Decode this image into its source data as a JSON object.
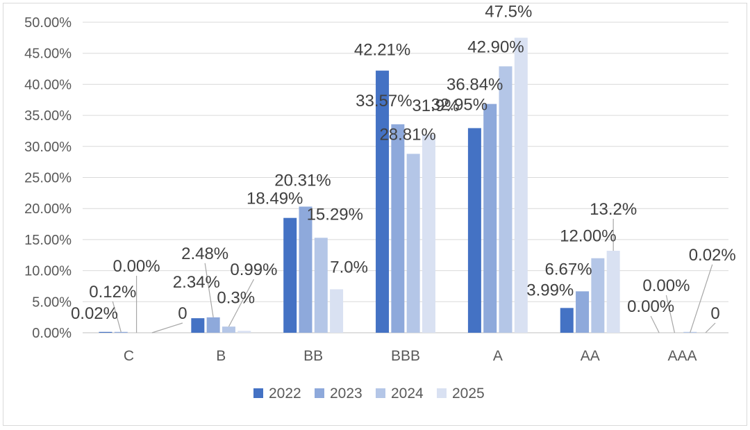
{
  "chart_data": {
    "type": "bar",
    "title": "",
    "xlabel": "",
    "ylabel": "",
    "ylim": [
      0,
      50
    ],
    "yticks": [
      "0.00%",
      "5.00%",
      "10.00%",
      "15.00%",
      "20.00%",
      "25.00%",
      "30.00%",
      "35.00%",
      "40.00%",
      "45.00%",
      "50.00%"
    ],
    "categories": [
      "C",
      "B",
      "BB",
      "BBB",
      "A",
      "AA",
      "AAA"
    ],
    "legend_position": "bottom",
    "series": [
      {
        "name": "2022",
        "color": "#4472C4",
        "values": [
          0.02,
          2.34,
          18.49,
          42.21,
          32.95,
          3.99,
          0.0
        ],
        "labels": [
          "0.02%",
          "2.34%",
          "18.49%",
          "42.21%",
          "32.95%",
          "3.99%",
          "0.00%"
        ]
      },
      {
        "name": "2023",
        "color": "#8EA9DB",
        "values": [
          0.12,
          2.48,
          20.31,
          33.57,
          36.84,
          6.67,
          0.0
        ],
        "labels": [
          "0.12%",
          "2.48%",
          "20.31%",
          "33.57%",
          "36.84%",
          "6.67%",
          "0.00%"
        ]
      },
      {
        "name": "2024",
        "color": "#B4C6E7",
        "values": [
          0.0,
          0.99,
          15.29,
          28.81,
          42.9,
          12.0,
          0.02
        ],
        "labels": [
          "0.00%",
          "0.99%",
          "15.29%",
          "28.81%",
          "42.90%",
          "12.00%",
          "0.02%"
        ]
      },
      {
        "name": "2025",
        "color": "#D9E1F2",
        "values": [
          0,
          0.3,
          7.0,
          31.9,
          47.5,
          13.2,
          0
        ],
        "labels": [
          "0",
          "0.3%",
          "7.0%",
          "31.9%",
          "47.5%",
          "13.2%",
          "0"
        ]
      }
    ]
  }
}
